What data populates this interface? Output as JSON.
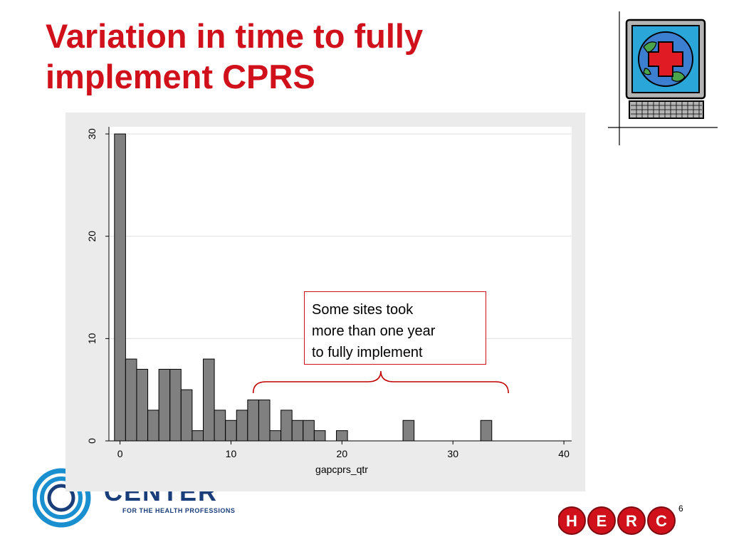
{
  "slide": {
    "title_line1": "Variation in time to fully",
    "title_line2": "implement CPRS",
    "annotation_line1": "Some sites took",
    "annotation_line2": "more than one year",
    "annotation_line3": "to fully implement",
    "page_number": "6",
    "logo_word": "CENTER",
    "logo_sub": "FOR THE HEALTH PROFESSIONS",
    "herc_letters": [
      "H",
      "E",
      "R",
      "C"
    ]
  },
  "colors": {
    "title": "#d0111b",
    "bar_fill": "#808080",
    "bar_stroke": "#000000",
    "plot_bg": "#ffffff",
    "panel_bg": "#ebebeb",
    "annotation_border": "#d0111b",
    "brace": "#c00000",
    "herc_red": "#d0111b",
    "logo_blue": "#1a3e7a"
  },
  "chart_data": {
    "type": "bar",
    "title": "",
    "xlabel": "gapcprs_qtr",
    "ylabel": "",
    "xlim": [
      -1,
      40.7
    ],
    "ylim": [
      0,
      30.7
    ],
    "xticks": [
      0,
      10,
      20,
      30,
      40
    ],
    "yticks": [
      0,
      10,
      20,
      30
    ],
    "grid": true,
    "bin_width": 1,
    "x": [
      0,
      1,
      2,
      3,
      4,
      5,
      6,
      7,
      8,
      9,
      10,
      11,
      12,
      13,
      14,
      15,
      16,
      17,
      18,
      20,
      26,
      33
    ],
    "values": [
      30,
      8,
      7,
      3,
      7,
      7,
      5,
      1,
      8,
      3,
      2,
      3,
      4,
      4,
      1,
      3,
      2,
      2,
      1,
      1,
      2,
      2
    ],
    "brace_range": [
      12,
      35
    ]
  }
}
